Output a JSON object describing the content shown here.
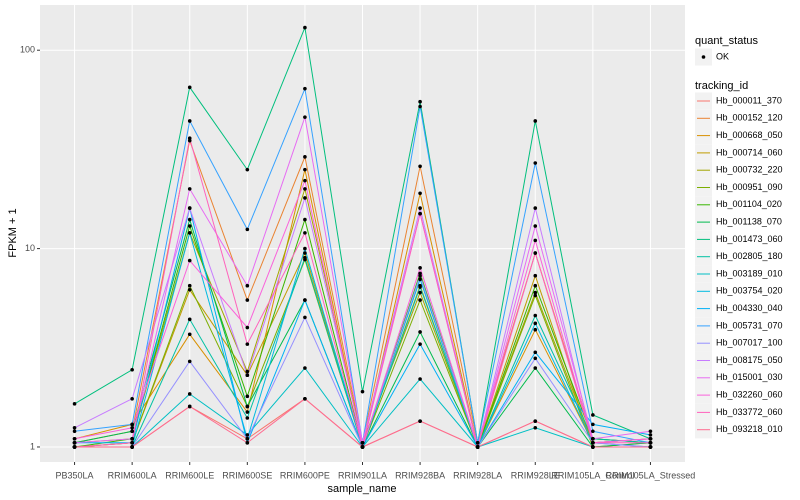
{
  "chart_data": {
    "type": "line",
    "x_label": "sample_name",
    "y_label": "FPKM + 1",
    "categories": [
      "PB350LA",
      "RRIM600LA",
      "RRIM600LE",
      "RRIM600SE",
      "RRIM600PE",
      "RRIM901LA",
      "RRIM928BA",
      "RRIM928LA",
      "RRIM928LE",
      "RRIM105LA_Control",
      "RRIM105LA_Stressed"
    ],
    "ylim": [
      0.84,
      169
    ],
    "yticks": [
      1,
      10,
      100
    ],
    "log_scale": true,
    "grid": true,
    "point_color": "#000000",
    "point_legend": {
      "title": "quant_status",
      "labels": [
        "OK"
      ]
    },
    "legend": {
      "title": "tracking_id",
      "position": "right"
    },
    "series": [
      {
        "name": "Hb_000011_370",
        "color": "#F8766D",
        "values": [
          1.0,
          1.0,
          1.6,
          1.1,
          1.75,
          1.0,
          1.35,
          1.0,
          1.35,
          1.0,
          1.0
        ]
      },
      {
        "name": "Hb_000152_120",
        "color": "#EA8331",
        "values": [
          1.05,
          1.2,
          35,
          5.5,
          29,
          1.05,
          26,
          1.05,
          9.5,
          1.1,
          1.05
        ]
      },
      {
        "name": "Hb_000668_050",
        "color": "#D89000",
        "values": [
          1.1,
          1.3,
          3.7,
          1.5,
          25,
          1.0,
          19,
          1.0,
          3.9,
          1.05,
          1.1
        ]
      },
      {
        "name": "Hb_000714_060",
        "color": "#C09B00",
        "values": [
          1.0,
          1.05,
          6.2,
          2.3,
          9.5,
          1.0,
          6.5,
          1.0,
          7.3,
          1.0,
          1.05
        ]
      },
      {
        "name": "Hb_000732_220",
        "color": "#A3A500",
        "values": [
          1.05,
          1.1,
          12,
          2.4,
          20,
          1.05,
          6,
          1.0,
          6,
          1.05,
          1.1
        ]
      },
      {
        "name": "Hb_000951_090",
        "color": "#7CAE00",
        "values": [
          1.0,
          1.05,
          6.5,
          1.6,
          8.8,
          1.0,
          5.5,
          1.0,
          5.8,
          1.0,
          1.0
        ]
      },
      {
        "name": "Hb_001104_020",
        "color": "#39B600",
        "values": [
          1.0,
          1.1,
          13,
          1.8,
          14,
          1.0,
          7.5,
          1.0,
          6.5,
          1.1,
          1.05
        ]
      },
      {
        "name": "Hb_001138_070",
        "color": "#00BB4E",
        "values": [
          1.05,
          1.2,
          14,
          1.6,
          5.5,
          1.0,
          3.8,
          1.0,
          2.5,
          1.0,
          1.05
        ]
      },
      {
        "name": "Hb_001473_060",
        "color": "#00BF7D",
        "values": [
          1.65,
          2.45,
          65,
          25,
          130,
          1.9,
          55,
          1.05,
          44,
          1.45,
          1.1
        ]
      },
      {
        "name": "Hb_002805_180",
        "color": "#00C1A3",
        "values": [
          1.0,
          1.0,
          4.4,
          1.4,
          9,
          1.0,
          6.4,
          1.0,
          4.6,
          1.1,
          1.05
        ]
      },
      {
        "name": "Hb_003189_010",
        "color": "#00BFC4",
        "values": [
          1.0,
          1.0,
          1.85,
          1.15,
          2.5,
          1.0,
          2.2,
          1.0,
          1.25,
          1.0,
          1.0
        ]
      },
      {
        "name": "Hb_003754_020",
        "color": "#00BAE0",
        "values": [
          1.0,
          1.0,
          12,
          1.1,
          10,
          1.0,
          7,
          1.0,
          4.2,
          1.05,
          1.0
        ]
      },
      {
        "name": "Hb_004330_040",
        "color": "#00B0F6",
        "values": [
          1.05,
          1.05,
          16,
          1.05,
          5.5,
          1.0,
          3.3,
          1.0,
          3,
          1.3,
          1.15
        ]
      },
      {
        "name": "Hb_005731_070",
        "color": "#35A2FF",
        "values": [
          1.2,
          1.3,
          44,
          12.5,
          64,
          1.05,
          52,
          1.05,
          27,
          1.2,
          1.05
        ]
      },
      {
        "name": "Hb_007017_100",
        "color": "#9590FF",
        "values": [
          1.0,
          1.0,
          2.7,
          1.1,
          4.5,
          1.0,
          7.3,
          1.0,
          2.8,
          1.05,
          1.0
        ]
      },
      {
        "name": "Hb_008175_050",
        "color": "#C77CFF",
        "values": [
          1.25,
          1.75,
          16,
          2.3,
          18,
          1.05,
          16,
          1.0,
          16,
          1.05,
          1.1
        ]
      },
      {
        "name": "Hb_015001_030",
        "color": "#E76BF3",
        "values": [
          1.05,
          1.1,
          20,
          6.5,
          46,
          1.05,
          15,
          1.0,
          13,
          1.1,
          1.2
        ]
      },
      {
        "name": "Hb_032260_060",
        "color": "#FA62DB",
        "values": [
          1.1,
          1.25,
          8.7,
          4,
          22,
          1.0,
          8,
          1.0,
          11,
          1.05,
          1.1
        ]
      },
      {
        "name": "Hb_033772_060",
        "color": "#FF62BC",
        "values": [
          1.0,
          1.05,
          36,
          3.3,
          12,
          1.0,
          15,
          1.0,
          9.5,
          1.05,
          1.05
        ]
      },
      {
        "name": "Hb_093218_010",
        "color": "#FF6C91",
        "values": [
          1.0,
          1.0,
          1.6,
          1.05,
          1.75,
          1.0,
          1.35,
          1.0,
          1.35,
          1.0,
          1.0
        ]
      }
    ]
  }
}
